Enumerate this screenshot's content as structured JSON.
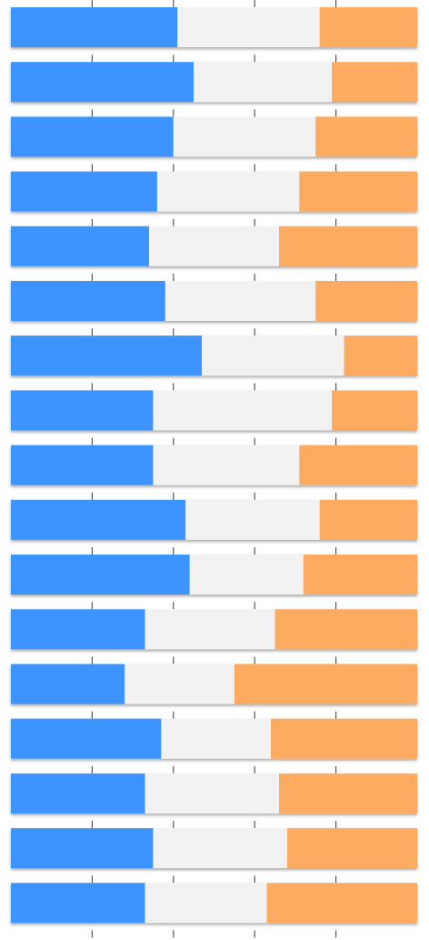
{
  "chart_data": {
    "type": "bar",
    "stacked": true,
    "normalized": true,
    "orientation": "horizontal",
    "grid": false,
    "xlim": [
      0,
      100
    ],
    "series": [
      {
        "color": "#3d94ff",
        "values": [
          41,
          45,
          40,
          36,
          34,
          38,
          47,
          35,
          35,
          43,
          44,
          33,
          28,
          37,
          33,
          35,
          33
        ]
      },
      {
        "color": "#f2f2f2",
        "values": [
          35,
          34,
          35,
          35,
          32,
          37,
          35,
          44,
          36,
          33,
          28,
          32,
          27,
          27,
          33,
          33,
          30
        ]
      },
      {
        "color": "#fdab60",
        "values": [
          24,
          21,
          25,
          29,
          34,
          25,
          18,
          21,
          29,
          24,
          28,
          35,
          45,
          36,
          34,
          32,
          37
        ]
      }
    ]
  }
}
